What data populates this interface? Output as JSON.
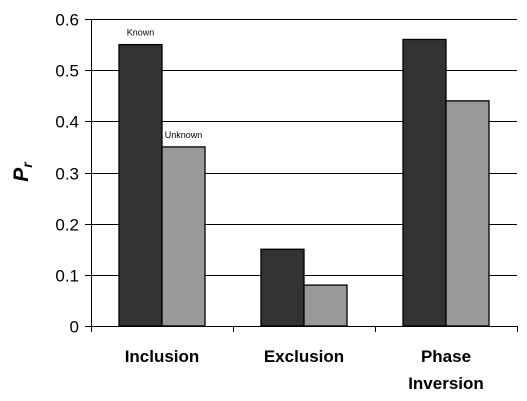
{
  "chart_data": {
    "type": "bar",
    "categories": [
      "Inclusion",
      "Exclusion",
      "Phase Inversion"
    ],
    "category_lines": [
      [
        "Inclusion"
      ],
      [
        "Exclusion"
      ],
      [
        "Phase",
        "Inversion"
      ]
    ],
    "series": [
      {
        "name": "Known",
        "values": [
          0.55,
          0.15,
          0.56
        ],
        "color": "#333333"
      },
      {
        "name": "Unknown",
        "values": [
          0.35,
          0.08,
          0.44
        ],
        "color": "#999999"
      }
    ],
    "annotations": [
      {
        "text": "Known",
        "category": 0,
        "series": 0
      },
      {
        "text": "Unknown",
        "category": 0,
        "series": 1
      }
    ],
    "ylabel": "P",
    "ylabel_subscript": "r",
    "ylim": [
      0,
      0.6
    ],
    "yticks": [
      "0",
      "0.1",
      "0.2",
      "0.3",
      "0.4",
      "0.5",
      "0.6"
    ],
    "ytick_values": [
      0,
      0.1,
      0.2,
      0.3,
      0.4,
      0.5,
      0.6
    ],
    "grid": true,
    "legend": "none"
  }
}
